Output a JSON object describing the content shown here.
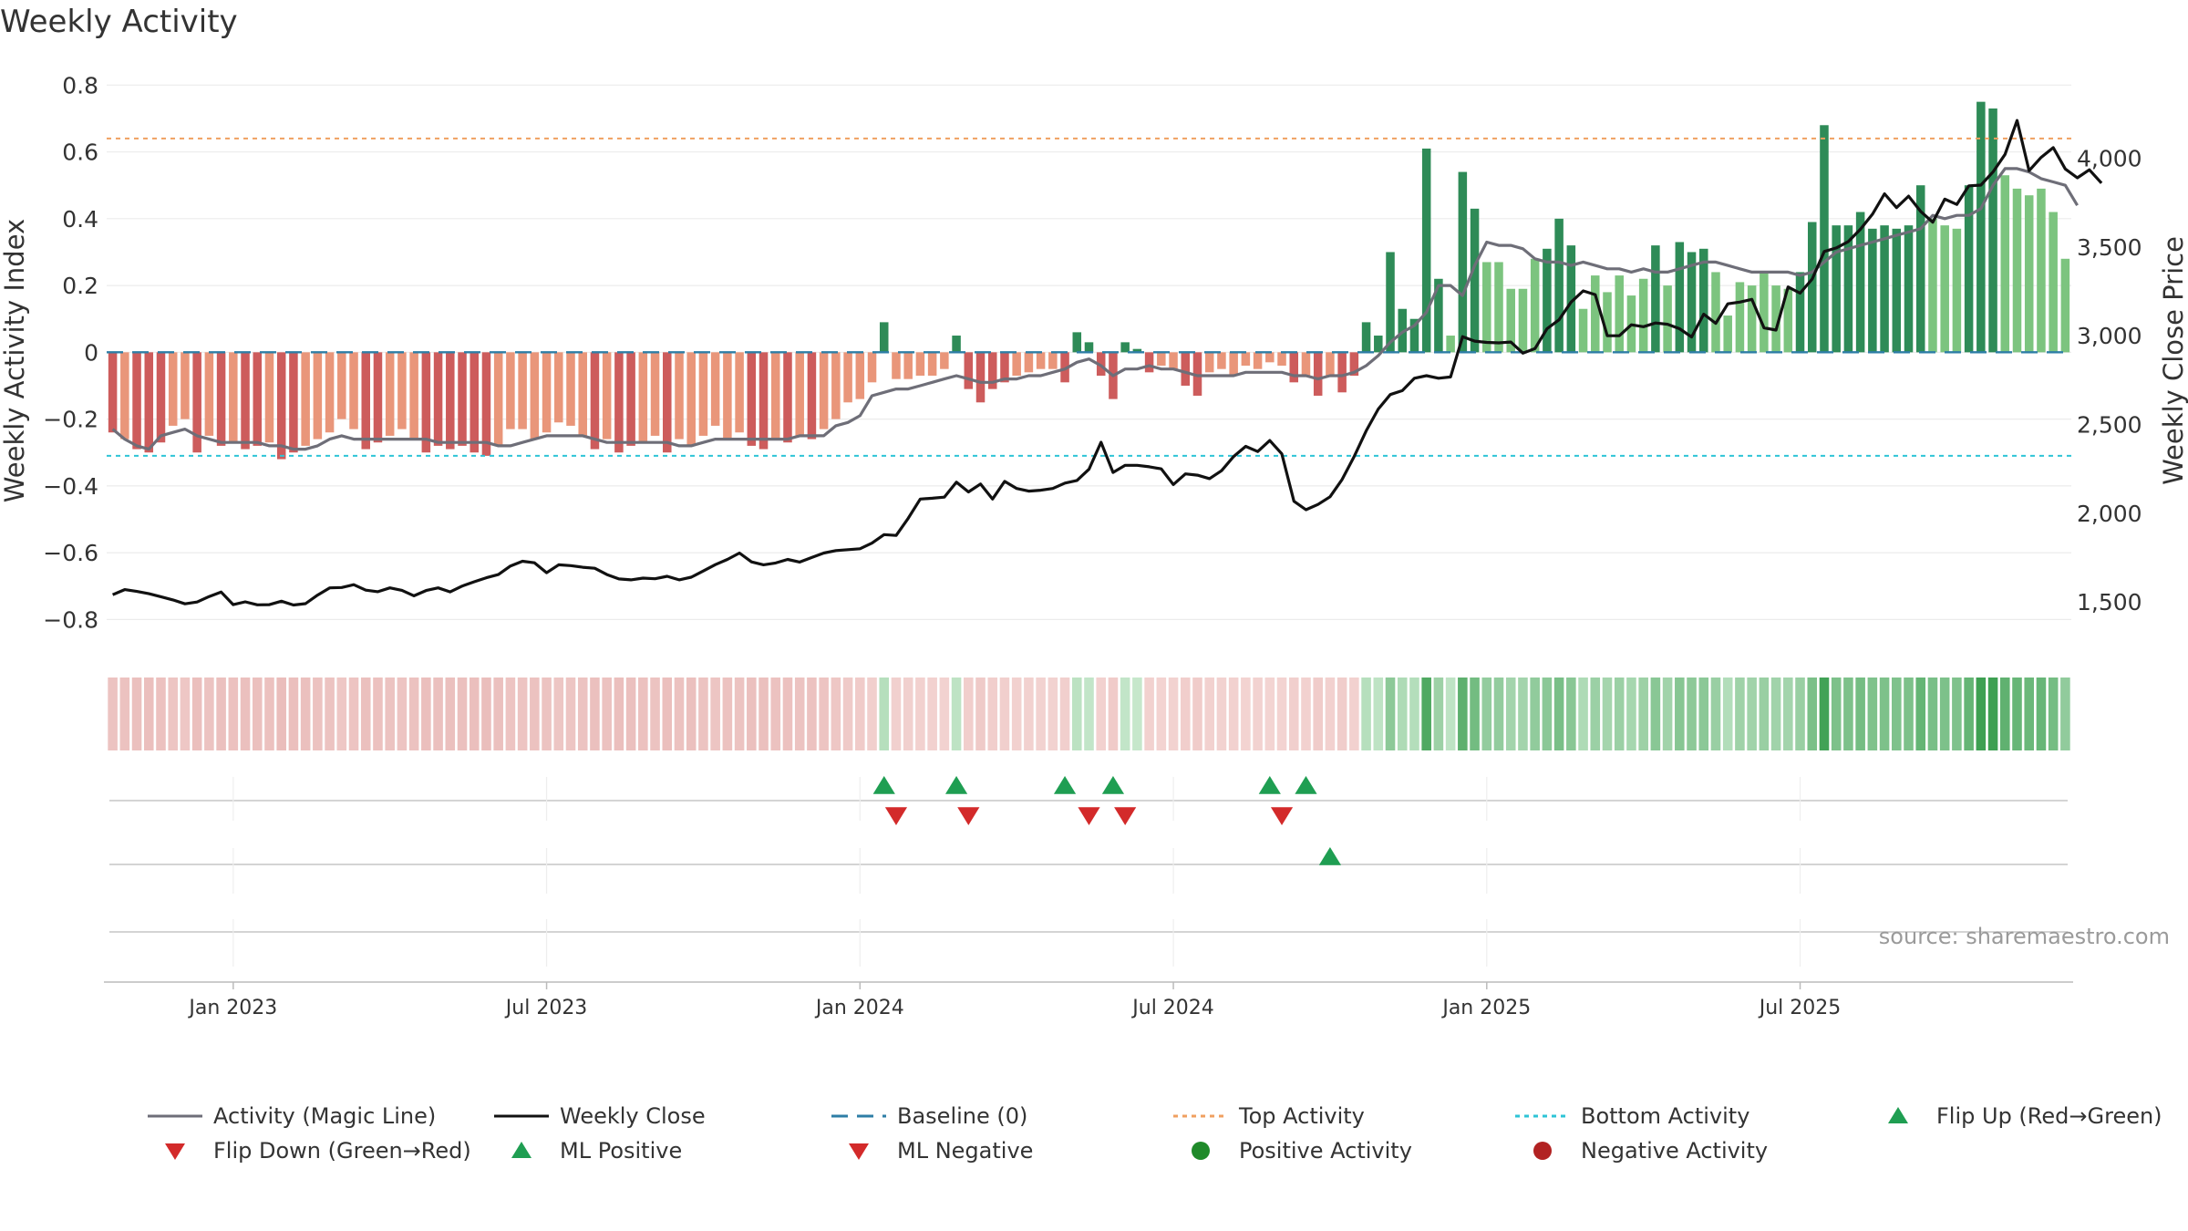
{
  "title": "Weekly Activity",
  "source": "source: sharemaestro.com",
  "legend": [
    {
      "label": "Activity (Magic Line)",
      "kind": "line",
      "color": "#6e6e78",
      "dash": ""
    },
    {
      "label": "Weekly Close",
      "kind": "line",
      "color": "#111111",
      "dash": ""
    },
    {
      "label": "Baseline (0)",
      "kind": "line",
      "color": "#2e7ea6",
      "dash": "18,10"
    },
    {
      "label": "Top Activity",
      "kind": "line",
      "color": "#f0a060",
      "dash": "5,5"
    },
    {
      "label": "Bottom Activity",
      "kind": "line",
      "color": "#2ec4d6",
      "dash": "5,5"
    },
    {
      "label": "Flip Up (Red→Green)",
      "kind": "tri-up",
      "color": "#1f9e52",
      "dash": ""
    },
    {
      "label": "Flip Down (Green→Red)",
      "kind": "tri-down",
      "color": "#d32a2a",
      "dash": ""
    },
    {
      "label": "ML Positive",
      "kind": "tri-up",
      "color": "#1f9e52",
      "dash": ""
    },
    {
      "label": "ML Negative",
      "kind": "tri-down",
      "color": "#d32a2a",
      "dash": ""
    },
    {
      "label": "Positive Activity",
      "kind": "dot",
      "color": "#1f8a2a",
      "dash": ""
    },
    {
      "label": "Negative Activity",
      "kind": "dot",
      "color": "#b22222",
      "dash": ""
    }
  ],
  "chart_data": {
    "type": "bar",
    "title": "Weekly Activity",
    "ylabel": "Weekly Activity Index",
    "y2label": "Weekly Close Price",
    "ylim": [
      -0.87,
      0.82
    ],
    "y2lim": [
      1270,
      4450
    ],
    "yticks": [
      {
        "v": 0.8,
        "label": "0.8"
      },
      {
        "v": 0.6,
        "label": "0.6"
      },
      {
        "v": 0.4,
        "label": "0.4"
      },
      {
        "v": 0.2,
        "label": "0.2"
      },
      {
        "v": 0,
        "label": "0"
      },
      {
        "v": -0.2,
        "label": "−0.2"
      },
      {
        "v": -0.4,
        "label": "−0.4"
      },
      {
        "v": -0.6,
        "label": "−0.6"
      },
      {
        "v": -0.8,
        "label": "−0.8"
      }
    ],
    "y2ticks": [
      {
        "v": 4000,
        "label": "4,000"
      },
      {
        "v": 3500,
        "label": "3,500"
      },
      {
        "v": 3000,
        "label": "3,000"
      },
      {
        "v": 2500,
        "label": "2,500"
      },
      {
        "v": 2000,
        "label": "2,000"
      },
      {
        "v": 1500,
        "label": "1,500"
      }
    ],
    "xticks": [
      {
        "week": 10,
        "label": "Jan 2023"
      },
      {
        "week": 36,
        "label": "Jul 2023"
      },
      {
        "week": 62,
        "label": "Jan 2024"
      },
      {
        "week": 88,
        "label": "Jul 2024"
      },
      {
        "week": 114,
        "label": "Jan 2025"
      },
      {
        "week": 140,
        "label": "Jul 2025"
      }
    ],
    "top_activity": 0.64,
    "bottom_activity": -0.31,
    "baseline": 0,
    "activity": [
      -0.24,
      -0.26,
      -0.29,
      -0.3,
      -0.27,
      -0.22,
      -0.2,
      -0.3,
      -0.25,
      -0.28,
      -0.27,
      -0.29,
      -0.28,
      -0.27,
      -0.32,
      -0.3,
      -0.28,
      -0.26,
      -0.24,
      -0.2,
      -0.23,
      -0.29,
      -0.27,
      -0.25,
      -0.23,
      -0.26,
      -0.3,
      -0.28,
      -0.29,
      -0.28,
      -0.3,
      -0.31,
      -0.28,
      -0.23,
      -0.23,
      -0.26,
      -0.24,
      -0.21,
      -0.22,
      -0.25,
      -0.29,
      -0.26,
      -0.3,
      -0.28,
      -0.27,
      -0.25,
      -0.3,
      -0.26,
      -0.28,
      -0.25,
      -0.22,
      -0.26,
      -0.24,
      -0.28,
      -0.29,
      -0.26,
      -0.27,
      -0.25,
      -0.26,
      -0.23,
      -0.2,
      -0.15,
      -0.14,
      -0.09,
      0.09,
      -0.08,
      -0.08,
      -0.07,
      -0.07,
      -0.05,
      0.05,
      -0.11,
      -0.15,
      -0.11,
      -0.09,
      -0.07,
      -0.06,
      -0.05,
      -0.05,
      -0.09,
      0.06,
      0.03,
      -0.07,
      -0.14,
      0.03,
      0.01,
      -0.06,
      -0.04,
      -0.05,
      -0.1,
      -0.13,
      -0.06,
      -0.05,
      -0.07,
      -0.04,
      -0.05,
      -0.03,
      -0.04,
      -0.09,
      -0.07,
      -0.13,
      -0.07,
      -0.12,
      -0.07,
      0.09,
      0.05,
      0.3,
      0.13,
      0.1,
      0.61,
      0.22,
      0.05,
      0.54,
      0.43,
      0.27,
      0.27,
      0.19,
      0.19,
      0.28,
      0.31,
      0.4,
      0.32,
      0.13,
      0.23,
      0.18,
      0.23,
      0.17,
      0.22,
      0.32,
      0.2,
      0.33,
      0.3,
      0.31,
      0.24,
      0.11,
      0.21,
      0.2,
      0.24,
      0.2,
      0.19,
      0.24,
      0.39,
      0.68,
      0.38,
      0.38,
      0.42,
      0.37,
      0.38,
      0.37,
      0.38,
      0.5,
      0.4,
      0.38,
      0.37,
      0.5,
      0.75,
      0.73,
      0.53,
      0.49,
      0.47,
      0.49,
      0.42,
      0.28
    ],
    "magic_line": [
      -0.23,
      -0.26,
      -0.28,
      -0.29,
      -0.25,
      -0.24,
      -0.23,
      -0.25,
      -0.26,
      -0.27,
      -0.27,
      -0.27,
      -0.27,
      -0.28,
      -0.28,
      -0.29,
      -0.29,
      -0.28,
      -0.26,
      -0.25,
      -0.26,
      -0.26,
      -0.26,
      -0.26,
      -0.26,
      -0.26,
      -0.26,
      -0.27,
      -0.27,
      -0.27,
      -0.27,
      -0.27,
      -0.28,
      -0.28,
      -0.27,
      -0.26,
      -0.25,
      -0.25,
      -0.25,
      -0.25,
      -0.26,
      -0.27,
      -0.27,
      -0.27,
      -0.27,
      -0.27,
      -0.27,
      -0.28,
      -0.28,
      -0.27,
      -0.26,
      -0.26,
      -0.26,
      -0.26,
      -0.26,
      -0.26,
      -0.26,
      -0.25,
      -0.25,
      -0.25,
      -0.22,
      -0.21,
      -0.19,
      -0.13,
      -0.12,
      -0.11,
      -0.11,
      -0.1,
      -0.09,
      -0.08,
      -0.07,
      -0.08,
      -0.09,
      -0.09,
      -0.08,
      -0.08,
      -0.07,
      -0.07,
      -0.06,
      -0.05,
      -0.03,
      -0.02,
      -0.04,
      -0.07,
      -0.05,
      -0.05,
      -0.04,
      -0.05,
      -0.05,
      -0.06,
      -0.07,
      -0.07,
      -0.07,
      -0.07,
      -0.06,
      -0.06,
      -0.06,
      -0.06,
      -0.07,
      -0.07,
      -0.08,
      -0.07,
      -0.07,
      -0.06,
      -0.04,
      -0.01,
      0.03,
      0.06,
      0.08,
      0.12,
      0.2,
      0.2,
      0.17,
      0.26,
      0.33,
      0.32,
      0.32,
      0.31,
      0.28,
      0.27,
      0.27,
      0.26,
      0.27,
      0.26,
      0.25,
      0.25,
      0.24,
      0.25,
      0.24,
      0.24,
      0.25,
      0.26,
      0.27,
      0.27,
      0.26,
      0.25,
      0.24,
      0.24,
      0.24,
      0.24,
      0.23,
      0.24,
      0.27,
      0.3,
      0.31,
      0.32,
      0.33,
      0.34,
      0.35,
      0.36,
      0.37,
      0.41,
      0.4,
      0.41,
      0.41,
      0.43,
      0.5,
      0.55,
      0.55,
      0.54,
      0.52,
      0.51,
      0.5,
      0.44
    ],
    "weekly_close": [
      1541,
      1570,
      1560,
      1547,
      1530,
      1512,
      1490,
      1500,
      1531,
      1556,
      1485,
      1501,
      1484,
      1485,
      1505,
      1483,
      1491,
      1539,
      1580,
      1582,
      1598,
      1567,
      1558,
      1580,
      1566,
      1535,
      1565,
      1580,
      1557,
      1590,
      1614,
      1637,
      1655,
      1703,
      1730,
      1721,
      1665,
      1710,
      1705,
      1696,
      1690,
      1655,
      1630,
      1625,
      1635,
      1631,
      1645,
      1625,
      1640,
      1675,
      1711,
      1740,
      1776,
      1726,
      1710,
      1720,
      1740,
      1725,
      1751,
      1776,
      1790,
      1795,
      1800,
      1832,
      1880,
      1875,
      1972,
      2080,
      2085,
      2091,
      2175,
      2120,
      2165,
      2080,
      2180,
      2140,
      2125,
      2130,
      2140,
      2170,
      2185,
      2248,
      2400,
      2230,
      2270,
      2270,
      2262,
      2250,
      2162,
      2222,
      2215,
      2195,
      2240,
      2320,
      2377,
      2348,
      2410,
      2335,
      2068,
      2020,
      2050,
      2093,
      2190,
      2320,
      2465,
      2587,
      2669,
      2691,
      2761,
      2775,
      2761,
      2768,
      2995,
      2970,
      2963,
      2960,
      2965,
      2902,
      2928,
      3040,
      3090,
      3190,
      3253,
      3232,
      3000,
      3000,
      3062,
      3051,
      3072,
      3065,
      3040,
      2993,
      3122,
      3070,
      3180,
      3190,
      3205,
      3045,
      3032,
      3275,
      3240,
      3320,
      3475,
      3495,
      3531,
      3600,
      3685,
      3800,
      3722,
      3787,
      3701,
      3640,
      3770,
      3740,
      3845,
      3849,
      3923,
      4022,
      4213,
      3930,
      4005,
      4060,
      3940,
      3890,
      3935,
      3860
    ],
    "flip_up_weeks": [
      64,
      70,
      79,
      83,
      96,
      99
    ],
    "flip_down_weeks": [
      65,
      71,
      81,
      84,
      97
    ],
    "ml_positive_weeks": [
      101
    ],
    "ml_negative_weeks": [],
    "positive_activity_weeks": [],
    "negative_activity_weeks": []
  }
}
